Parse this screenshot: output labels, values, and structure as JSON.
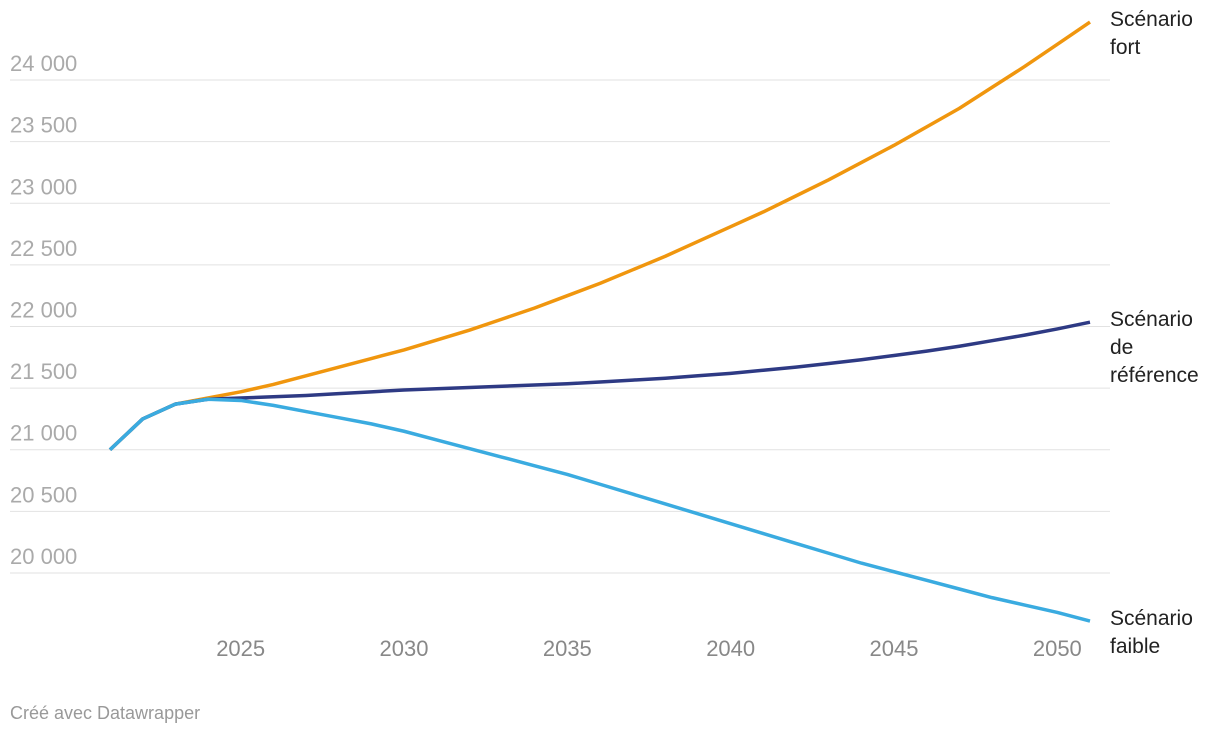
{
  "chart_data": {
    "type": "line",
    "x": [
      2021,
      2022,
      2023,
      2024,
      2025,
      2026,
      2027,
      2028,
      2029,
      2030,
      2031,
      2032,
      2033,
      2034,
      2035,
      2036,
      2037,
      2038,
      2039,
      2040,
      2041,
      2042,
      2043,
      2044,
      2045,
      2046,
      2047,
      2048,
      2049,
      2050,
      2051
    ],
    "xlim": [
      2021,
      2051
    ],
    "xticks": [
      2025,
      2030,
      2035,
      2040,
      2045,
      2050
    ],
    "ylim": [
      19500,
      24500
    ],
    "yticks": [
      {
        "value": 20000,
        "label": "20 000"
      },
      {
        "value": 20500,
        "label": "20 500"
      },
      {
        "value": 21000,
        "label": "21 000"
      },
      {
        "value": 21500,
        "label": "21 500"
      },
      {
        "value": 22000,
        "label": "22 000"
      },
      {
        "value": 22500,
        "label": "22 500"
      },
      {
        "value": 23000,
        "label": "23 000"
      },
      {
        "value": 23500,
        "label": "23 500"
      },
      {
        "value": 24000,
        "label": "24 000"
      }
    ],
    "grid": true,
    "series": [
      {
        "name": "Scénario fort",
        "color": "#f0960e",
        "values": [
          21000,
          21250,
          21370,
          21420,
          21470,
          21530,
          21600,
          21670,
          21740,
          21810,
          21890,
          21970,
          22060,
          22150,
          22250,
          22350,
          22460,
          22570,
          22690,
          22810,
          22930,
          23060,
          23190,
          23330,
          23470,
          23620,
          23770,
          23940,
          24110,
          24290,
          24470
        ]
      },
      {
        "name": "Scénario de référence",
        "color": "#2e3a84",
        "values": [
          21000,
          21250,
          21370,
          21410,
          21420,
          21430,
          21440,
          21455,
          21470,
          21485,
          21495,
          21505,
          21515,
          21525,
          21535,
          21550,
          21565,
          21580,
          21600,
          21620,
          21645,
          21670,
          21700,
          21730,
          21765,
          21800,
          21840,
          21885,
          21930,
          21980,
          22035
        ]
      },
      {
        "name": "Scénario faible",
        "color": "#3aabe0",
        "values": [
          21000,
          21250,
          21370,
          21410,
          21400,
          21360,
          21310,
          21260,
          21210,
          21150,
          21080,
          21010,
          20940,
          20870,
          20800,
          20720,
          20640,
          20560,
          20480,
          20400,
          20320,
          20240,
          20160,
          20080,
          20010,
          19940,
          19870,
          19800,
          19740,
          19680,
          19610
        ]
      }
    ],
    "source": "Créé avec Datawrapper"
  }
}
